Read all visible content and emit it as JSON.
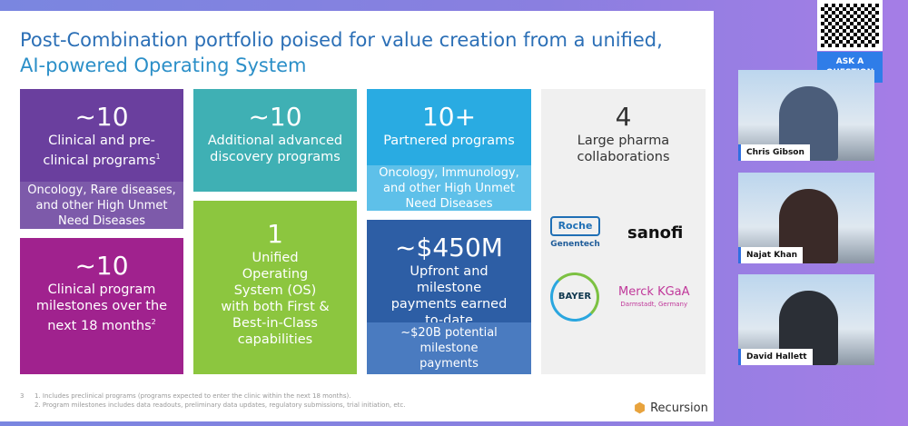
{
  "title": {
    "line1": "Post-Combination portfolio poised for value creation from a unified,",
    "line2": "AI-powered Operating System"
  },
  "boxes": {
    "clinical": {
      "num": "~10",
      "text": "Clinical and pre-clinical programs",
      "sup": "1",
      "sub": "Oncology, Rare diseases, and other High Unmet Need Diseases"
    },
    "milestones": {
      "num": "~10",
      "text": "Clinical program milestones over the next 18 months",
      "sup": "2"
    },
    "discovery": {
      "num": "~10",
      "text": "Additional advanced discovery programs"
    },
    "os": {
      "num": "1",
      "text": "Unified Operating System (OS) with both First & Best-in-Class capabilities"
    },
    "partnered": {
      "num": "10+",
      "text": "Partnered programs",
      "sub": "Oncology, Immunology, and other High Unmet Need Diseases"
    },
    "payments": {
      "num": "~$450M",
      "text": "Upfront and milestone payments earned to-date",
      "sub": "~$20B potential milestone payments"
    },
    "pharma": {
      "num": "4",
      "text": "Large pharma collaborations"
    }
  },
  "logos": {
    "roche": "Roche",
    "genentech": "Genentech",
    "sanofi": "sanofi",
    "bayer": "BAYER",
    "merck": "Merck KGaA",
    "merck_sub": "Darmstadt, Germany"
  },
  "footnotes": {
    "page": "3",
    "n1": "1.  Includes preclinical programs (programs expected to enter the clinic within the next 18 months).",
    "n2": "2.  Program milestones includes data readouts, preliminary data updates, regulatory submissions, trial initiation, etc."
  },
  "brand": "Recursion",
  "ask": "ASK A QUESTION",
  "speakers": [
    "Chris Gibson",
    "Najat Khan",
    "David Hallett"
  ]
}
